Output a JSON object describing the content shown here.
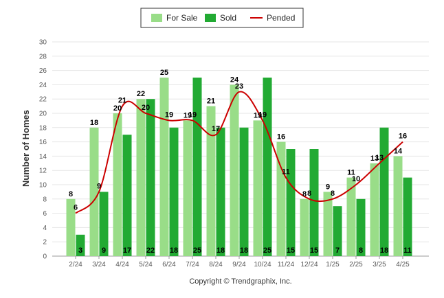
{
  "chart_data": {
    "type": "bar",
    "title": "",
    "xlabel": "",
    "ylabel": "Number of Homes",
    "ylim": [
      0,
      30
    ],
    "yticks": [
      0,
      2,
      4,
      6,
      8,
      10,
      12,
      14,
      16,
      18,
      20,
      22,
      24,
      26,
      28,
      30
    ],
    "grid": true,
    "legend_position": "top-center",
    "categories": [
      "2/24",
      "3/24",
      "4/24",
      "5/24",
      "6/24",
      "7/24",
      "8/24",
      "9/24",
      "10/24",
      "11/24",
      "12/24",
      "1/25",
      "2/25",
      "3/25",
      "4/25"
    ],
    "series": [
      {
        "name": "For Sale",
        "type": "bar",
        "color": "#99dd88",
        "values": [
          8,
          18,
          20,
          22,
          25,
          19,
          21,
          24,
          19,
          16,
          8,
          9,
          11,
          13,
          14
        ]
      },
      {
        "name": "Sold",
        "type": "bar",
        "color": "#22aa33",
        "values": [
          3,
          9,
          17,
          22,
          18,
          25,
          18,
          18,
          25,
          15,
          15,
          7,
          8,
          18,
          11
        ]
      },
      {
        "name": "Pended",
        "type": "line",
        "color": "#cc0000",
        "values": [
          6,
          9,
          21,
          20,
          19,
          19,
          17,
          23,
          19,
          11,
          8,
          8,
          10,
          13,
          16
        ]
      }
    ]
  },
  "footer": {
    "copyright": "Copyright © Trendgraphix, Inc."
  }
}
